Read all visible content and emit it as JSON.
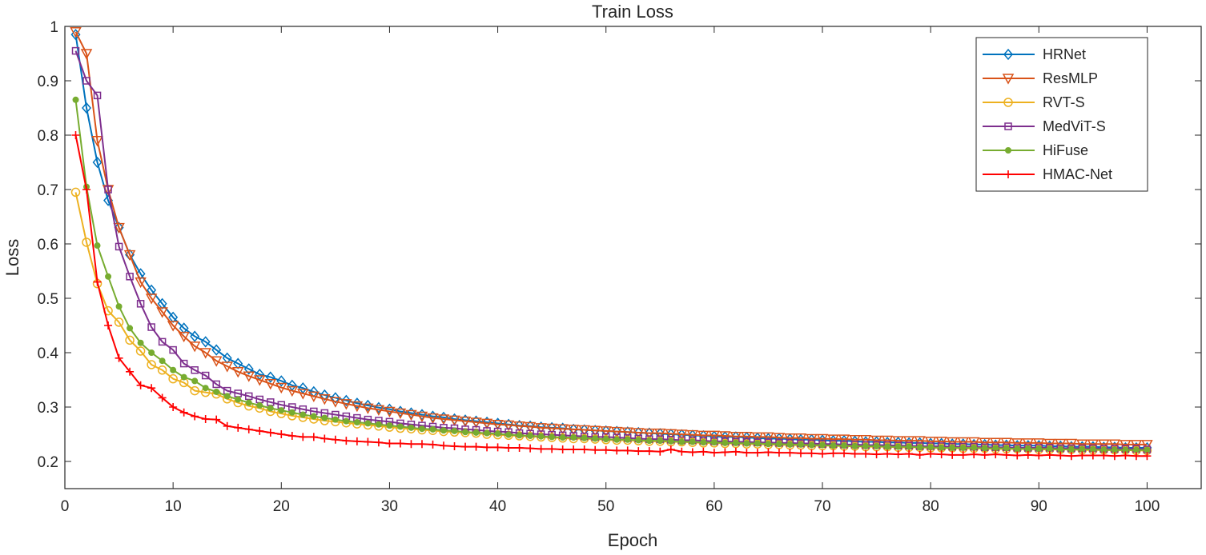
{
  "chart_data": {
    "type": "line",
    "title": "Train Loss",
    "xlabel": "Epoch",
    "ylabel": "Loss",
    "xlim": [
      0,
      105
    ],
    "ylim": [
      0.15,
      1.0
    ],
    "xticks": [
      0,
      10,
      20,
      30,
      40,
      50,
      60,
      70,
      80,
      90,
      100
    ],
    "yticks": [
      0.2,
      0.3,
      0.4,
      0.5,
      0.6,
      0.7,
      0.8,
      0.9,
      1
    ],
    "xtick_labels": [
      "0",
      "10",
      "20",
      "30",
      "40",
      "50",
      "60",
      "70",
      "80",
      "90",
      "100"
    ],
    "ytick_labels": [
      "0.2",
      "0.3",
      "0.4",
      "0.5",
      "0.6",
      "0.7",
      "0.8",
      "0.9",
      "1"
    ],
    "grid": false,
    "legend_position": "top-right",
    "x": "1..100 (epoch)",
    "series": [
      {
        "name": "HRNet",
        "color": "#0072BD",
        "marker": "diamond",
        "values": [
          0.985,
          0.85,
          0.75,
          0.68,
          0.63,
          0.58,
          0.545,
          0.515,
          0.49,
          0.465,
          0.445,
          0.43,
          0.42,
          0.405,
          0.39,
          0.38,
          0.37,
          0.36,
          0.355,
          0.348,
          0.34,
          0.335,
          0.328,
          0.322,
          0.317,
          0.312,
          0.307,
          0.303,
          0.299,
          0.296,
          0.292,
          0.289,
          0.286,
          0.283,
          0.281,
          0.278,
          0.276,
          0.274,
          0.272,
          0.27,
          0.268,
          0.266,
          0.265,
          0.263,
          0.262,
          0.261,
          0.259,
          0.258,
          0.257,
          0.256,
          0.255,
          0.254,
          0.253,
          0.252,
          0.251,
          0.25,
          0.249,
          0.248,
          0.247,
          0.246,
          0.245,
          0.245,
          0.244,
          0.243,
          0.242,
          0.242,
          0.241,
          0.24,
          0.24,
          0.239,
          0.238,
          0.238,
          0.237,
          0.236,
          0.236,
          0.235,
          0.235,
          0.234,
          0.234,
          0.233,
          0.233,
          0.232,
          0.232,
          0.231,
          0.231,
          0.23,
          0.23,
          0.229,
          0.229,
          0.229,
          0.228,
          0.228,
          0.227,
          0.227,
          0.227,
          0.226,
          0.226,
          0.225,
          0.225,
          0.225
        ]
      },
      {
        "name": "ResMLP",
        "color": "#D95319",
        "marker": "triangle-down",
        "values": [
          0.99,
          0.95,
          0.79,
          0.7,
          0.63,
          0.58,
          0.53,
          0.5,
          0.475,
          0.45,
          0.43,
          0.412,
          0.4,
          0.385,
          0.375,
          0.365,
          0.357,
          0.35,
          0.343,
          0.336,
          0.33,
          0.325,
          0.32,
          0.315,
          0.31,
          0.306,
          0.302,
          0.298,
          0.295,
          0.292,
          0.289,
          0.286,
          0.283,
          0.28,
          0.278,
          0.276,
          0.274,
          0.272,
          0.27,
          0.268,
          0.267,
          0.265,
          0.264,
          0.262,
          0.261,
          0.26,
          0.259,
          0.258,
          0.257,
          0.256,
          0.255,
          0.254,
          0.253,
          0.252,
          0.252,
          0.251,
          0.25,
          0.249,
          0.248,
          0.248,
          0.247,
          0.246,
          0.246,
          0.245,
          0.245,
          0.244,
          0.243,
          0.243,
          0.242,
          0.242,
          0.241,
          0.241,
          0.24,
          0.24,
          0.239,
          0.239,
          0.238,
          0.238,
          0.238,
          0.237,
          0.237,
          0.236,
          0.236,
          0.236,
          0.235,
          0.235,
          0.235,
          0.234,
          0.234,
          0.234,
          0.233,
          0.233,
          0.233,
          0.232,
          0.232,
          0.232,
          0.232,
          0.231,
          0.231,
          0.231
        ]
      },
      {
        "name": "RVT-S",
        "color": "#EDB120",
        "marker": "circle",
        "values": [
          0.695,
          0.603,
          0.527,
          0.477,
          0.456,
          0.423,
          0.403,
          0.378,
          0.368,
          0.352,
          0.345,
          0.33,
          0.327,
          0.324,
          0.315,
          0.308,
          0.302,
          0.298,
          0.292,
          0.288,
          0.284,
          0.281,
          0.278,
          0.275,
          0.273,
          0.271,
          0.269,
          0.267,
          0.265,
          0.263,
          0.261,
          0.26,
          0.258,
          0.257,
          0.255,
          0.254,
          0.253,
          0.252,
          0.25,
          0.249,
          0.248,
          0.247,
          0.246,
          0.245,
          0.244,
          0.243,
          0.242,
          0.242,
          0.241,
          0.24,
          0.239,
          0.239,
          0.238,
          0.237,
          0.237,
          0.236,
          0.236,
          0.235,
          0.234,
          0.234,
          0.233,
          0.233,
          0.232,
          0.232,
          0.231,
          0.231,
          0.23,
          0.23,
          0.229,
          0.229,
          0.229,
          0.228,
          0.228,
          0.227,
          0.227,
          0.227,
          0.226,
          0.226,
          0.226,
          0.225,
          0.225,
          0.225,
          0.224,
          0.224,
          0.224,
          0.223,
          0.223,
          0.223,
          0.223,
          0.222,
          0.222,
          0.222,
          0.222,
          0.221,
          0.221,
          0.221,
          0.221,
          0.221,
          0.22,
          0.22
        ]
      },
      {
        "name": "MedViT-S",
        "color": "#7E2F8E",
        "marker": "square",
        "values": [
          0.955,
          0.9,
          0.873,
          0.7,
          0.595,
          0.54,
          0.49,
          0.447,
          0.42,
          0.405,
          0.38,
          0.368,
          0.358,
          0.342,
          0.33,
          0.325,
          0.32,
          0.314,
          0.309,
          0.304,
          0.3,
          0.296,
          0.292,
          0.289,
          0.286,
          0.283,
          0.28,
          0.277,
          0.275,
          0.273,
          0.27,
          0.268,
          0.266,
          0.264,
          0.262,
          0.261,
          0.259,
          0.258,
          0.256,
          0.255,
          0.254,
          0.252,
          0.251,
          0.25,
          0.249,
          0.248,
          0.247,
          0.246,
          0.245,
          0.245,
          0.244,
          0.243,
          0.242,
          0.241,
          0.241,
          0.24,
          0.239,
          0.239,
          0.238,
          0.237,
          0.237,
          0.236,
          0.236,
          0.235,
          0.235,
          0.234,
          0.234,
          0.233,
          0.233,
          0.232,
          0.232,
          0.231,
          0.231,
          0.23,
          0.23,
          0.23,
          0.229,
          0.229,
          0.228,
          0.228,
          0.228,
          0.227,
          0.227,
          0.227,
          0.226,
          0.226,
          0.226,
          0.225,
          0.225,
          0.225,
          0.225,
          0.224,
          0.224,
          0.224,
          0.224,
          0.223,
          0.223,
          0.223,
          0.223,
          0.222
        ]
      },
      {
        "name": "HiFuse",
        "color": "#77AC30",
        "marker": "dot",
        "values": [
          0.865,
          0.705,
          0.597,
          0.54,
          0.485,
          0.445,
          0.418,
          0.4,
          0.385,
          0.368,
          0.355,
          0.348,
          0.335,
          0.328,
          0.32,
          0.314,
          0.308,
          0.303,
          0.298,
          0.294,
          0.29,
          0.286,
          0.283,
          0.28,
          0.277,
          0.274,
          0.272,
          0.27,
          0.268,
          0.266,
          0.264,
          0.262,
          0.26,
          0.259,
          0.257,
          0.256,
          0.254,
          0.253,
          0.252,
          0.251,
          0.249,
          0.248,
          0.247,
          0.246,
          0.245,
          0.244,
          0.244,
          0.243,
          0.242,
          0.241,
          0.24,
          0.24,
          0.239,
          0.238,
          0.238,
          0.237,
          0.236,
          0.236,
          0.235,
          0.235,
          0.234,
          0.234,
          0.233,
          0.233,
          0.232,
          0.232,
          0.231,
          0.231,
          0.23,
          0.23,
          0.229,
          0.229,
          0.228,
          0.228,
          0.228,
          0.227,
          0.227,
          0.227,
          0.226,
          0.226,
          0.225,
          0.225,
          0.225,
          0.225,
          0.224,
          0.224,
          0.224,
          0.223,
          0.223,
          0.223,
          0.223,
          0.222,
          0.222,
          0.222,
          0.222,
          0.221,
          0.221,
          0.221,
          0.221,
          0.221
        ]
      },
      {
        "name": "HMAC-Net",
        "color": "#FF0000",
        "marker": "plus",
        "values": [
          0.8,
          0.7,
          0.53,
          0.45,
          0.39,
          0.365,
          0.34,
          0.335,
          0.317,
          0.3,
          0.29,
          0.283,
          0.278,
          0.277,
          0.265,
          0.262,
          0.259,
          0.256,
          0.253,
          0.25,
          0.247,
          0.245,
          0.245,
          0.242,
          0.24,
          0.238,
          0.237,
          0.236,
          0.235,
          0.233,
          0.233,
          0.232,
          0.232,
          0.231,
          0.229,
          0.228,
          0.227,
          0.227,
          0.226,
          0.226,
          0.225,
          0.225,
          0.224,
          0.223,
          0.223,
          0.222,
          0.222,
          0.222,
          0.221,
          0.221,
          0.22,
          0.22,
          0.219,
          0.219,
          0.218,
          0.222,
          0.218,
          0.217,
          0.218,
          0.216,
          0.217,
          0.218,
          0.216,
          0.216,
          0.217,
          0.216,
          0.216,
          0.215,
          0.215,
          0.214,
          0.215,
          0.215,
          0.214,
          0.214,
          0.213,
          0.214,
          0.213,
          0.214,
          0.212,
          0.214,
          0.213,
          0.212,
          0.212,
          0.213,
          0.212,
          0.213,
          0.212,
          0.211,
          0.212,
          0.211,
          0.212,
          0.211,
          0.21,
          0.211,
          0.211,
          0.211,
          0.21,
          0.211,
          0.21,
          0.21
        ]
      }
    ]
  }
}
